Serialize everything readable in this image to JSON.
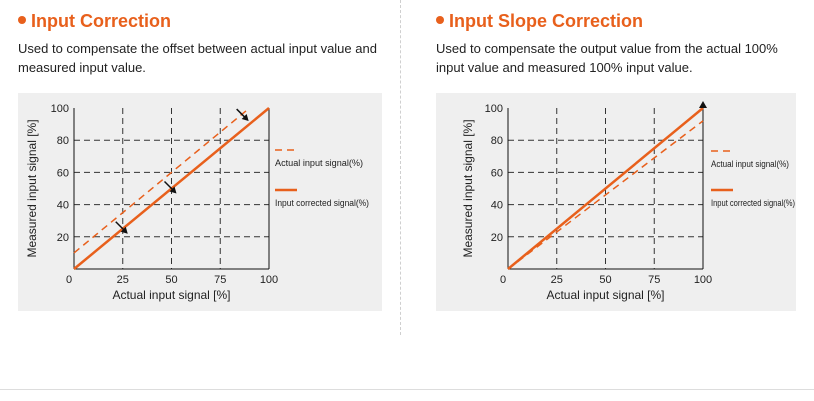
{
  "colors": {
    "accent": "#e8601c",
    "text": "#222222",
    "chart_bg": "#efefef",
    "grid": "#333333"
  },
  "panels": [
    {
      "title": "Input Correction",
      "description": "Used to compensate the offset between actual input value and measured input value.",
      "legend": {
        "dashed_label": "Actual input signal(%)",
        "solid_label": "Input corrected signal(%)"
      },
      "arrow_icon": "arrow-down-right-icon"
    },
    {
      "title": "Input Slope Correction",
      "description": "Used to compensate the output value from the actual 100% input value and measured 100% input value.",
      "legend": {
        "dashed_label": "Actual input signal(%)",
        "solid_label": "Input corrected signal(%)"
      },
      "arrow_icon": "arrow-up-icon"
    }
  ],
  "chart_data": [
    {
      "type": "line",
      "xlabel": "Actual input signal [%]",
      "ylabel": "Measured input signal [%]",
      "xlim": [
        0,
        100
      ],
      "ylim": [
        0,
        100
      ],
      "x_ticks": [
        0,
        25,
        50,
        75,
        100
      ],
      "y_ticks": [
        20,
        40,
        60,
        80,
        100
      ],
      "grid": true,
      "legend_position": "right",
      "series": [
        {
          "name": "Actual input signal(%)",
          "style": "dashed",
          "x": [
            0,
            90
          ],
          "y": [
            10,
            100
          ]
        },
        {
          "name": "Input corrected signal(%)",
          "style": "solid",
          "x": [
            0,
            100
          ],
          "y": [
            0,
            100
          ]
        }
      ],
      "annotations": [
        {
          "type": "arrow",
          "direction": "down-right",
          "x": 25,
          "y": 25
        },
        {
          "type": "arrow",
          "direction": "down-right",
          "x": 50,
          "y": 50
        },
        {
          "type": "arrow",
          "direction": "down-right",
          "x": 87,
          "y": 95
        }
      ]
    },
    {
      "type": "line",
      "xlabel": "Actual input signal [%]",
      "ylabel": "Measured input signal [%]",
      "xlim": [
        0,
        100
      ],
      "ylim": [
        0,
        100
      ],
      "x_ticks": [
        0,
        25,
        50,
        75,
        100
      ],
      "y_ticks": [
        20,
        40,
        60,
        80,
        100
      ],
      "grid": true,
      "legend_position": "right",
      "series": [
        {
          "name": "Actual input signal(%)",
          "style": "dashed",
          "x": [
            0,
            100
          ],
          "y": [
            0,
            92
          ]
        },
        {
          "name": "Input corrected signal(%)",
          "style": "solid",
          "x": [
            0,
            100
          ],
          "y": [
            0,
            100
          ]
        }
      ],
      "annotations": [
        {
          "type": "arrow",
          "direction": "up",
          "x": 100,
          "y": 100
        }
      ]
    }
  ]
}
